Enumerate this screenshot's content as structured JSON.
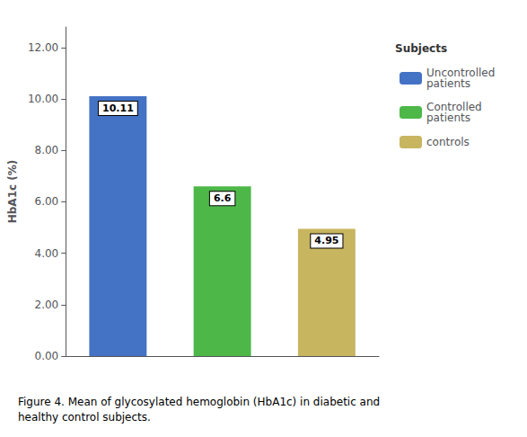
{
  "chart_data": {
    "type": "bar",
    "categories": [
      "Uncontrolled\npatients",
      "Controlled\npatients",
      "controls"
    ],
    "values": [
      10.11,
      6.6,
      4.95
    ],
    "colors": [
      "#4472C4",
      "#4DB848",
      "#C8B560"
    ],
    "ylabel": "HbA1c (%)",
    "ylim": [
      0,
      12.8
    ],
    "yticks": [
      {
        "value": 0,
        "label": "0.00"
      },
      {
        "value": 2,
        "label": "2.00"
      },
      {
        "value": 4,
        "label": "4.00"
      },
      {
        "value": 6,
        "label": "6.00"
      },
      {
        "value": 8,
        "label": "8.00"
      },
      {
        "value": 10,
        "label": "10.00"
      },
      {
        "value": 12,
        "label": "12.00"
      }
    ],
    "legend_title": "Subjects",
    "legend": "right",
    "caption": "Figure 4. Mean of glycosylated hemoglobin (HbA1c) in diabetic and\nhealthy control subjects.",
    "data_labels": true,
    "tick_labels": "y",
    "grid": false
  }
}
